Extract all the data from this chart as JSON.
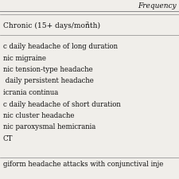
{
  "background_color": "#f0eeea",
  "header_line_color": "#888888",
  "text_color": "#111111",
  "frequency_label": "Frequency",
  "chronic_label": "Chronic (15+ days/month)",
  "chronic_superscript": "2",
  "items": [
    "c daily headache of long duration",
    "nic migraine",
    "nic tension-type headache",
    " daily persistent headache",
    "icrania continua",
    "c daily headache of short duration",
    "nic cluster headache",
    "nic paroxysmal hemicrania",
    "CT"
  ],
  "bottom_text": "giform headache attacks with conjunctival inje",
  "font_size_header": 6.5,
  "font_size_chronic": 6.5,
  "font_size_items": 6.2,
  "font_size_bottom": 6.2
}
